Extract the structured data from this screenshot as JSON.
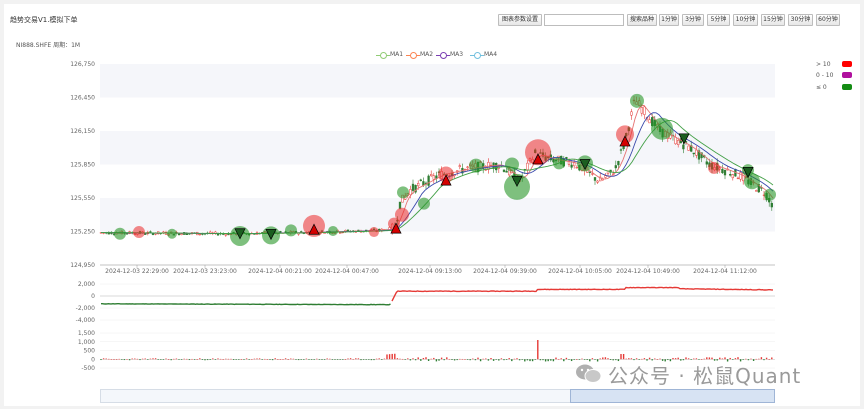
{
  "app": {
    "title": "趋势交易V1.模拟下单"
  },
  "toolbar": {
    "chart_settings_label": "图表参数设置",
    "search_placeholder": "",
    "search_button_label": "搜索品种",
    "intervals": [
      "1分钟",
      "3分钟",
      "5分钟",
      "10分钟",
      "15分钟",
      "30分钟",
      "60分钟"
    ]
  },
  "info": {
    "symbol_line": "NI888.SHFE 周期：1M"
  },
  "legend": {
    "items": [
      {
        "label": "MA1",
        "color": "#91cc75"
      },
      {
        "label": "MA2",
        "color": "#fc8452"
      },
      {
        "label": "MA3",
        "color": "#7b3fb3"
      },
      {
        "label": "MA4",
        "color": "#73c0de"
      }
    ]
  },
  "right_legend": {
    "items": [
      {
        "label": "> 10",
        "color": "#ff0000"
      },
      {
        "label": "0 - 10",
        "color": "#b0109e"
      },
      {
        "label": "≤ 0",
        "color": "#148c14"
      }
    ]
  },
  "chart_data": [
    {
      "type": "candlestick",
      "y_ticks": [
        "126,750",
        "126,450",
        "126,150",
        "125,850",
        "125,550",
        "125,250",
        "124,950"
      ],
      "ylim": [
        124950,
        126750
      ],
      "x_ticks": [
        "2024-12-03 22:29:00",
        "2024-12-03 23:23:00",
        "2024-12-04 00:21:00",
        "2024-12-04 00:47:00",
        "2024-12-04 09:13:00",
        "2024-12-04 09:39:00",
        "2024-12-04 10:05:00",
        "2024-12-04 10:49:00",
        "2024-12-04 11:12:00"
      ],
      "series_names": [
        "MA1",
        "MA2",
        "MA3",
        "MA4"
      ]
    },
    {
      "type": "line",
      "y_ticks": [
        "2,000",
        "0",
        "-2,000",
        "-4,000"
      ],
      "ylim": [
        -4000,
        2000
      ]
    },
    {
      "type": "bar",
      "y_ticks": [
        "1,500",
        "1,000",
        "500",
        "0",
        "-500"
      ],
      "ylim": [
        -500,
        1500
      ]
    }
  ],
  "watermark": {
    "text": "公众号 · 松鼠Quant"
  }
}
